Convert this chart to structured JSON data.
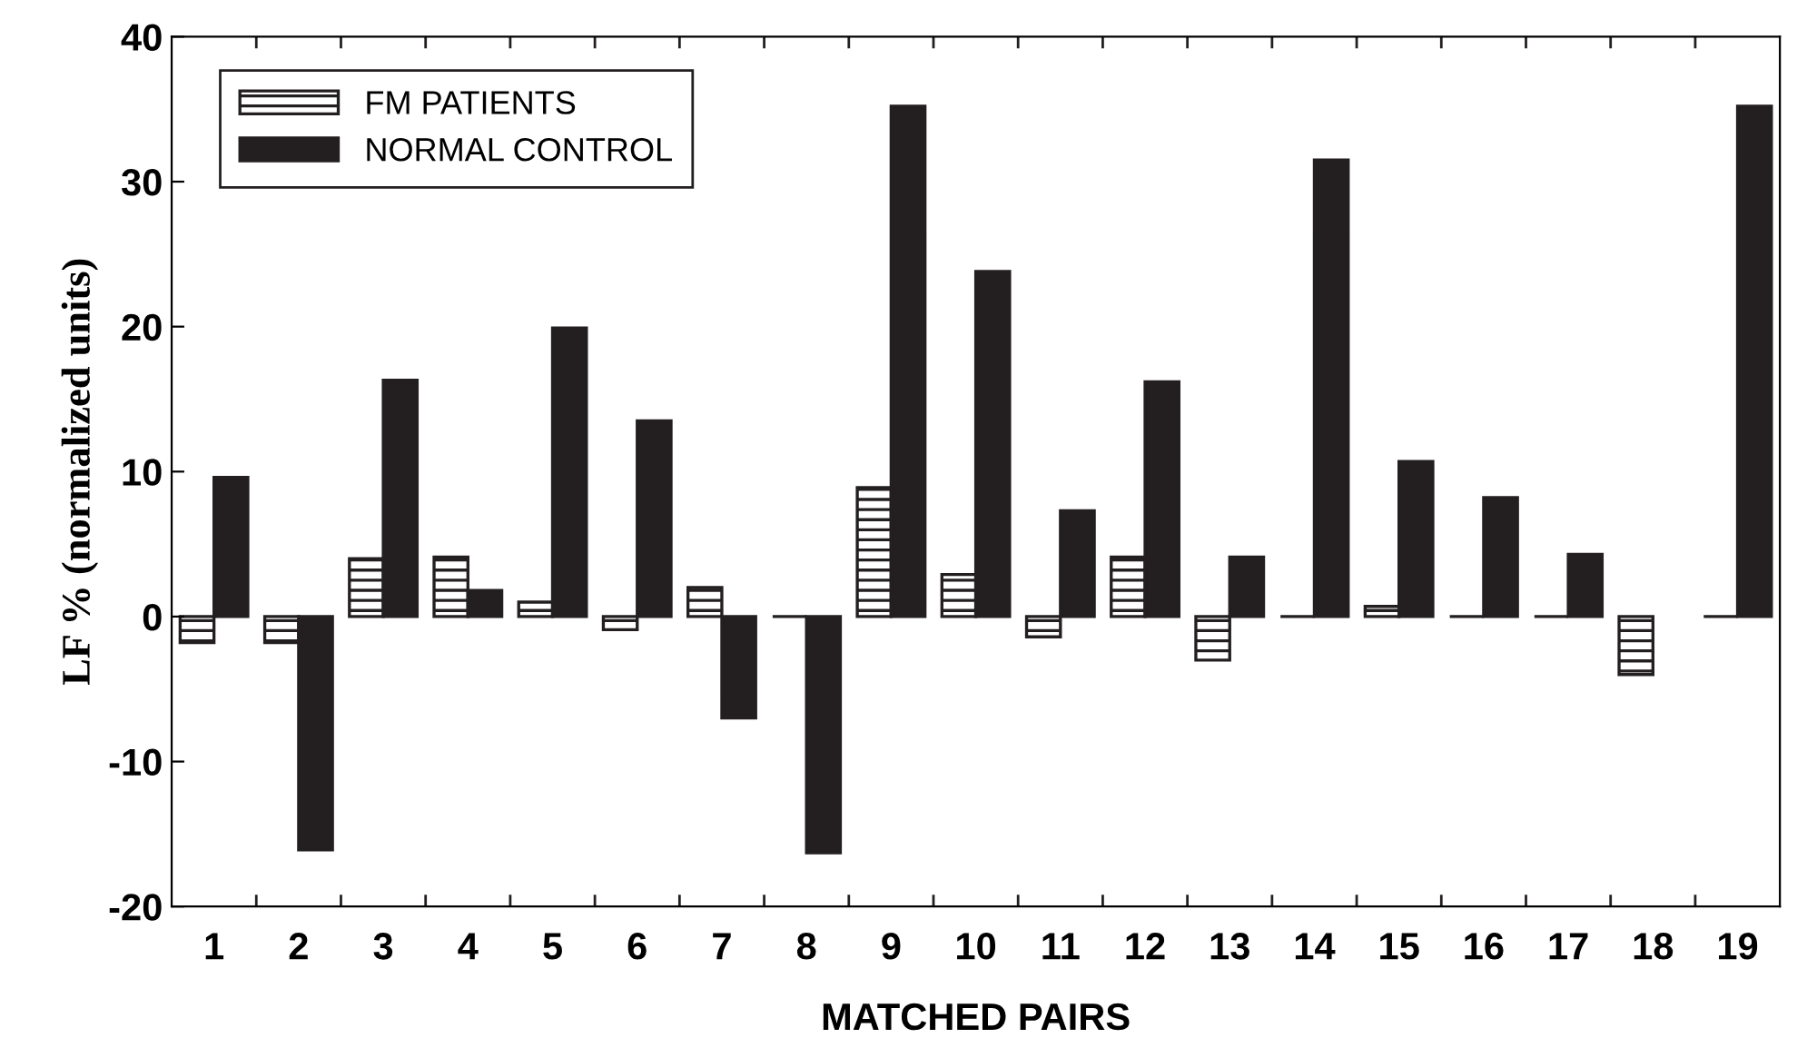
{
  "chart_data": {
    "type": "bar",
    "xlabel": "MATCHED PAIRS",
    "ylabel": "LF % (normalized units)",
    "categories": [
      "1",
      "2",
      "3",
      "4",
      "5",
      "6",
      "7",
      "8",
      "9",
      "10",
      "11",
      "12",
      "13",
      "14",
      "15",
      "16",
      "17",
      "18",
      "19"
    ],
    "series": [
      {
        "name": "FM PATIENTS",
        "color": "#231f20",
        "values": [
          -1.8,
          -1.8,
          4.0,
          4.1,
          1.0,
          -0.9,
          2.0,
          0,
          8.9,
          2.9,
          -1.4,
          4.1,
          -3.0,
          0,
          0.7,
          0,
          0,
          -4.0,
          0
        ]
      },
      {
        "name": "NORMAL CONTROL",
        "color": "#231f20",
        "values": [
          9.6,
          -16.1,
          16.3,
          1.8,
          19.9,
          13.5,
          -7.0,
          -16.3,
          35.2,
          23.8,
          7.3,
          16.2,
          4.1,
          31.5,
          10.7,
          8.2,
          4.3,
          null,
          35.2
        ]
      }
    ],
    "ylim": [
      -20,
      40
    ],
    "yticks": [
      -20,
      -10,
      0,
      10,
      20,
      30,
      40
    ],
    "grid": false,
    "legend": "top left"
  }
}
